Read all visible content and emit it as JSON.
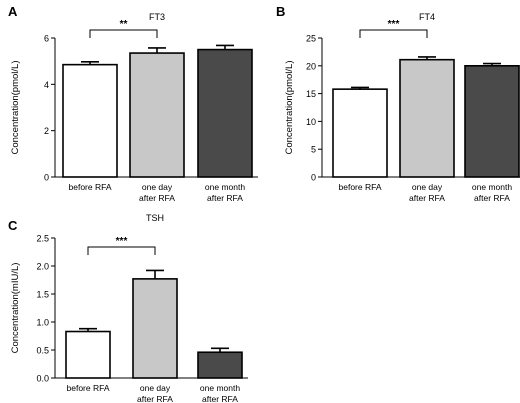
{
  "chart_data": [
    {
      "panel_label": "A",
      "type": "bar",
      "title": "FT3",
      "ylabel": "Concentration(pmol/L)",
      "xlabel": "",
      "ylim": [
        0,
        6
      ],
      "yticks": [
        "0",
        "2",
        "4",
        "6"
      ],
      "ytick_values": [
        0,
        2,
        4,
        6
      ],
      "categories": [
        [
          "before RFA"
        ],
        [
          "one day",
          "after RFA"
        ],
        [
          "one month",
          "after RFA"
        ]
      ],
      "values": [
        4.85,
        5.35,
        5.5
      ],
      "errors": [
        0.12,
        0.22,
        0.18
      ],
      "bar_colors": [
        "#ffffff",
        "#c8c8c8",
        "#4a4a4a"
      ],
      "significance": {
        "from": 0,
        "to": 1,
        "label": "**"
      }
    },
    {
      "panel_label": "B",
      "type": "bar",
      "title": "FT4",
      "ylabel": "Concentration(pmol/L)",
      "xlabel": "",
      "ylim": [
        0,
        25
      ],
      "yticks": [
        "0",
        "5",
        "10",
        "15",
        "20",
        "25"
      ],
      "ytick_values": [
        0,
        5,
        10,
        15,
        20,
        25
      ],
      "categories": [
        [
          "before RFA"
        ],
        [
          "one day",
          "after RFA"
        ],
        [
          "one month",
          "after RFA"
        ]
      ],
      "values": [
        15.8,
        21.1,
        20.0
      ],
      "errors": [
        0.3,
        0.5,
        0.4
      ],
      "bar_colors": [
        "#ffffff",
        "#c8c8c8",
        "#4a4a4a"
      ],
      "significance": {
        "from": 0,
        "to": 1,
        "label": "***"
      }
    },
    {
      "panel_label": "C",
      "type": "bar",
      "title": "TSH",
      "ylabel": "Concentration(mIU/L)",
      "xlabel": "",
      "ylim": [
        0,
        2.5
      ],
      "yticks": [
        "0.0",
        "0.5",
        "1.0",
        "1.5",
        "2.0",
        "2.5"
      ],
      "ytick_values": [
        0,
        0.5,
        1.0,
        1.5,
        2.0,
        2.5
      ],
      "categories": [
        [
          "before RFA"
        ],
        [
          "one day",
          "after RFA"
        ],
        [
          "one month",
          "after RFA"
        ]
      ],
      "values": [
        0.83,
        1.77,
        0.46
      ],
      "errors": [
        0.05,
        0.15,
        0.07
      ],
      "bar_colors": [
        "#ffffff",
        "#c8c8c8",
        "#4a4a4a"
      ],
      "significance": {
        "from": 0,
        "to": 1,
        "label": "***"
      }
    }
  ]
}
